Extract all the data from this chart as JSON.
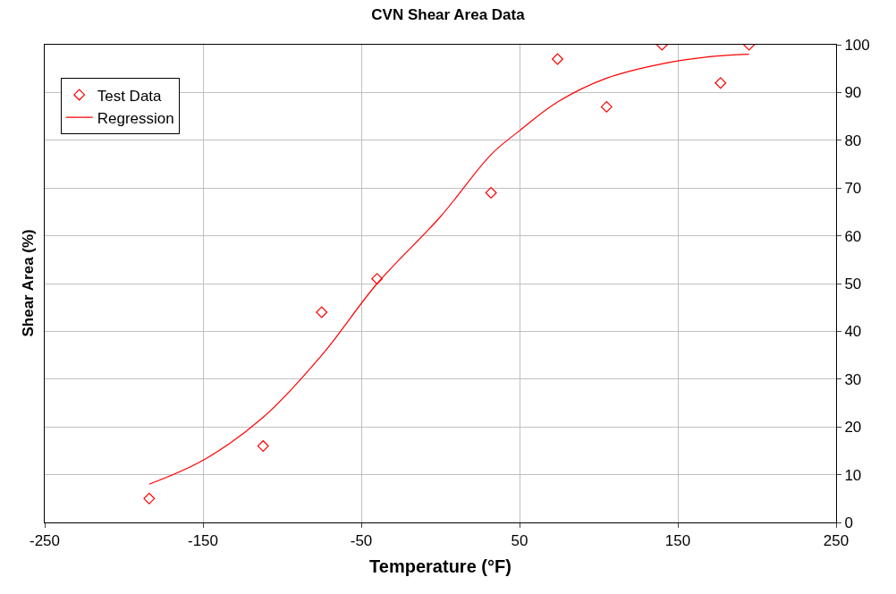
{
  "chart_data": {
    "type": "scatter",
    "title": "CVN Shear Area Data",
    "xlabel": "Temperature (°F)",
    "ylabel": "Shear Area (%)",
    "series": [
      {
        "name": "Test Data",
        "color": "#ff0000",
        "marker": "diamond",
        "x": [
          -184,
          -112,
          -75,
          -40,
          32,
          74,
          105,
          140,
          177,
          195
        ],
        "values": [
          5,
          16,
          44,
          51,
          69,
          97,
          87,
          100,
          92,
          100
        ]
      },
      {
        "name": "Regression",
        "type": "line",
        "color": "#ff0000",
        "line_style": "solid",
        "x": [
          -184,
          -150,
          -112,
          -75,
          -40,
          0,
          32,
          50,
          74,
          105,
          140,
          170,
          195
        ],
        "values": [
          8,
          13,
          22,
          35,
          50,
          64,
          77,
          82,
          88,
          93,
          96,
          97.5,
          98
        ]
      }
    ],
    "xlim": [
      -250,
      250
    ],
    "xticks": [
      -250,
      -150,
      -50,
      50,
      150,
      250
    ],
    "ylim": [
      0,
      100
    ],
    "yticks": [
      0,
      10,
      20,
      30,
      40,
      50,
      60,
      70,
      80,
      90,
      100
    ],
    "grid": true,
    "legend": "top left"
  }
}
